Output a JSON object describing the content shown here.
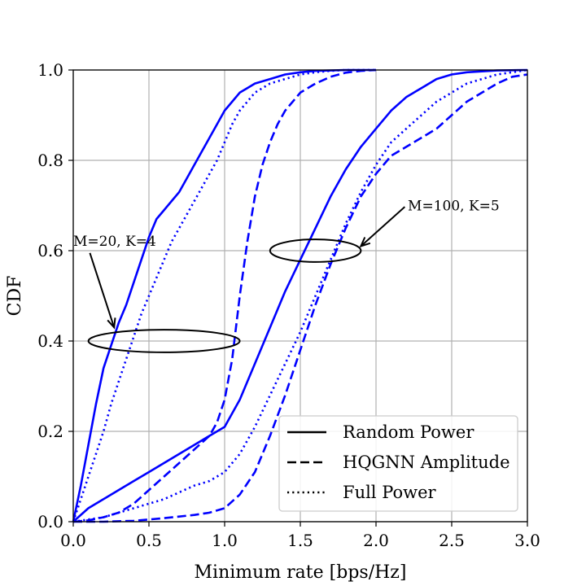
{
  "chart_data": {
    "type": "line",
    "xlabel": "Minimum rate [bps/Hz]",
    "ylabel": "CDF",
    "xlim": [
      0,
      3.0
    ],
    "ylim": [
      0,
      1.0
    ],
    "xticks": [
      "0.0",
      "0.5",
      "1.0",
      "1.5",
      "2.0",
      "2.5",
      "3.0"
    ],
    "yticks": [
      "0.0",
      "0.2",
      "0.4",
      "0.6",
      "0.8",
      "1.0"
    ],
    "grid": true,
    "legend_position": "lower-right",
    "legend": [
      {
        "label": "Random Power",
        "style": "solid"
      },
      {
        "label": "HQGNN Amplitude",
        "style": "dashed"
      },
      {
        "label": "Full Power",
        "style": "dotted"
      }
    ],
    "line_color": "#0000ff",
    "annotations": [
      {
        "text": "M=20, K=4",
        "arrow_to": [
          0.27,
          0.43
        ],
        "ellipse_center": [
          0.6,
          0.4
        ],
        "ellipse_size": [
          1.0,
          0.05
        ]
      },
      {
        "text": "M=100, K=5",
        "arrow_to": [
          1.9,
          0.61
        ],
        "ellipse_center": [
          1.6,
          0.6
        ],
        "ellipse_size": [
          0.6,
          0.05
        ]
      }
    ],
    "series": [
      {
        "name": "Random Power",
        "group": "M=20, K=4",
        "style": "solid",
        "x": [
          0.0,
          0.05,
          0.1,
          0.15,
          0.2,
          0.25,
          0.3,
          0.35,
          0.4,
          0.45,
          0.5,
          0.55,
          0.6,
          0.65,
          0.7,
          0.75,
          0.8,
          0.85,
          0.9,
          0.95,
          1.0,
          1.05,
          1.1,
          1.15,
          1.2,
          1.3,
          1.4,
          1.5,
          1.6,
          1.7,
          1.8,
          1.9,
          2.0
        ],
        "y": [
          0.0,
          0.08,
          0.17,
          0.26,
          0.34,
          0.39,
          0.44,
          0.48,
          0.53,
          0.58,
          0.63,
          0.67,
          0.69,
          0.71,
          0.73,
          0.76,
          0.79,
          0.82,
          0.85,
          0.88,
          0.91,
          0.93,
          0.95,
          0.96,
          0.97,
          0.98,
          0.99,
          0.995,
          0.998,
          0.999,
          1.0,
          1.0,
          1.0
        ]
      },
      {
        "name": "Full Power",
        "group": "M=20, K=4",
        "style": "dotted",
        "x": [
          0.0,
          0.05,
          0.1,
          0.15,
          0.2,
          0.25,
          0.3,
          0.35,
          0.4,
          0.45,
          0.5,
          0.55,
          0.6,
          0.65,
          0.7,
          0.75,
          0.8,
          0.85,
          0.9,
          0.95,
          1.0,
          1.05,
          1.1,
          1.15,
          1.2,
          1.3,
          1.4,
          1.5,
          1.6,
          1.7,
          1.8,
          1.9,
          2.0
        ],
        "y": [
          0.0,
          0.05,
          0.1,
          0.15,
          0.2,
          0.26,
          0.31,
          0.36,
          0.41,
          0.46,
          0.5,
          0.54,
          0.58,
          0.62,
          0.65,
          0.68,
          0.71,
          0.74,
          0.77,
          0.8,
          0.84,
          0.88,
          0.91,
          0.93,
          0.95,
          0.97,
          0.98,
          0.99,
          0.995,
          0.998,
          1.0,
          1.0,
          1.0
        ]
      },
      {
        "name": "HQGNN Amplitude",
        "group": "M=20, K=4",
        "style": "dashed",
        "x": [
          0.0,
          0.1,
          0.2,
          0.3,
          0.4,
          0.5,
          0.6,
          0.7,
          0.8,
          0.9,
          0.95,
          1.0,
          1.05,
          1.1,
          1.15,
          1.2,
          1.25,
          1.3,
          1.35,
          1.4,
          1.5,
          1.6,
          1.7,
          1.8,
          1.9,
          2.0
        ],
        "y": [
          0.0,
          0.003,
          0.01,
          0.02,
          0.04,
          0.07,
          0.1,
          0.13,
          0.16,
          0.19,
          0.22,
          0.27,
          0.36,
          0.5,
          0.62,
          0.72,
          0.79,
          0.84,
          0.88,
          0.91,
          0.95,
          0.97,
          0.985,
          0.994,
          0.998,
          1.0
        ]
      },
      {
        "name": "Random Power",
        "group": "M=100, K=5",
        "style": "solid",
        "x": [
          0.0,
          0.1,
          0.2,
          0.3,
          0.4,
          0.5,
          0.6,
          0.7,
          0.8,
          0.9,
          1.0,
          1.1,
          1.2,
          1.3,
          1.4,
          1.5,
          1.6,
          1.7,
          1.8,
          1.9,
          2.0,
          2.1,
          2.2,
          2.3,
          2.4,
          2.5,
          2.6,
          2.8,
          3.0
        ],
        "y": [
          0.0,
          0.03,
          0.05,
          0.07,
          0.09,
          0.11,
          0.13,
          0.15,
          0.17,
          0.19,
          0.21,
          0.27,
          0.35,
          0.43,
          0.51,
          0.58,
          0.65,
          0.72,
          0.78,
          0.83,
          0.87,
          0.91,
          0.94,
          0.96,
          0.98,
          0.99,
          0.995,
          0.999,
          1.0
        ]
      },
      {
        "name": "Full Power",
        "group": "M=100, K=5",
        "style": "dotted",
        "x": [
          0.0,
          0.2,
          0.4,
          0.6,
          0.8,
          0.9,
          1.0,
          1.1,
          1.2,
          1.3,
          1.4,
          1.5,
          1.6,
          1.7,
          1.8,
          1.9,
          2.0,
          2.1,
          2.2,
          2.3,
          2.4,
          2.5,
          2.6,
          2.7,
          2.8,
          2.9,
          3.0
        ],
        "y": [
          0.0,
          0.01,
          0.03,
          0.05,
          0.08,
          0.09,
          0.11,
          0.15,
          0.21,
          0.28,
          0.35,
          0.42,
          0.5,
          0.58,
          0.66,
          0.73,
          0.79,
          0.84,
          0.87,
          0.9,
          0.93,
          0.95,
          0.97,
          0.98,
          0.99,
          0.995,
          1.0
        ]
      },
      {
        "name": "HQGNN Amplitude",
        "group": "M=100, K=5",
        "style": "dashed",
        "x": [
          0.0,
          0.2,
          0.4,
          0.6,
          0.8,
          0.9,
          1.0,
          1.1,
          1.2,
          1.3,
          1.4,
          1.5,
          1.6,
          1.7,
          1.8,
          1.9,
          2.0,
          2.1,
          2.2,
          2.3,
          2.4,
          2.5,
          2.6,
          2.7,
          2.8,
          2.9,
          3.0
        ],
        "y": [
          0.0,
          0.0,
          0.002,
          0.008,
          0.015,
          0.02,
          0.03,
          0.06,
          0.11,
          0.19,
          0.28,
          0.38,
          0.48,
          0.57,
          0.65,
          0.72,
          0.77,
          0.81,
          0.83,
          0.85,
          0.87,
          0.9,
          0.93,
          0.95,
          0.97,
          0.985,
          0.99
        ]
      }
    ]
  }
}
